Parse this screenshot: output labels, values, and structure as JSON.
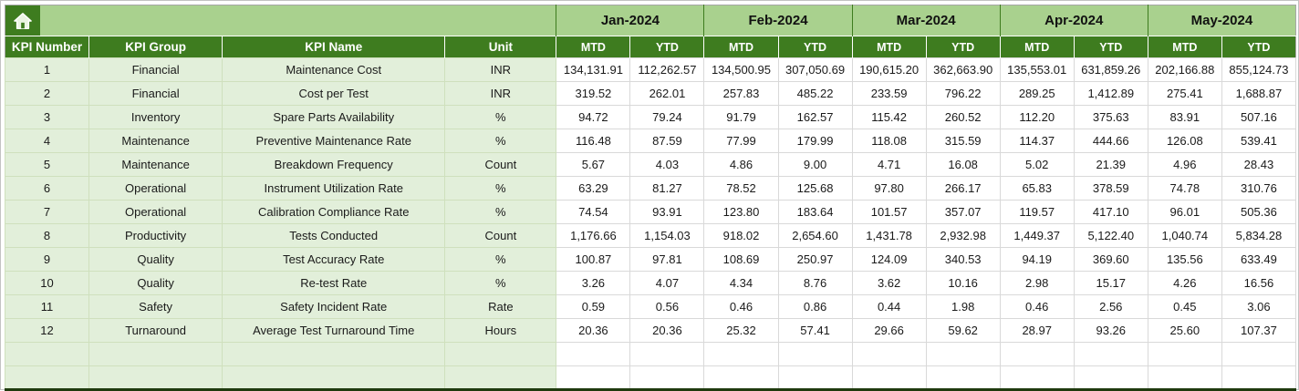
{
  "sheet": {
    "home_button": {
      "icon": "home-icon"
    },
    "months": [
      "Jan-2024",
      "Feb-2024",
      "Mar-2024",
      "Apr-2024",
      "May-2024"
    ],
    "sub_headers": [
      "MTD",
      "YTD"
    ],
    "columns": [
      "KPI Number",
      "KPI Group",
      "KPI Name",
      "Unit"
    ],
    "rows": [
      {
        "number": "1",
        "group": "Financial",
        "name": "Maintenance Cost",
        "unit": "INR",
        "values": [
          "134,131.91",
          "112,262.57",
          "134,500.95",
          "307,050.69",
          "190,615.20",
          "362,663.90",
          "135,553.01",
          "631,859.26",
          "202,166.88",
          "855,124.73"
        ]
      },
      {
        "number": "2",
        "group": "Financial",
        "name": "Cost per Test",
        "unit": "INR",
        "values": [
          "319.52",
          "262.01",
          "257.83",
          "485.22",
          "233.59",
          "796.22",
          "289.25",
          "1,412.89",
          "275.41",
          "1,688.87"
        ]
      },
      {
        "number": "3",
        "group": "Inventory",
        "name": "Spare Parts Availability",
        "unit": "%",
        "values": [
          "94.72",
          "79.24",
          "91.79",
          "162.57",
          "115.42",
          "260.52",
          "112.20",
          "375.63",
          "83.91",
          "507.16"
        ]
      },
      {
        "number": "4",
        "group": "Maintenance",
        "name": "Preventive Maintenance Rate",
        "unit": "%",
        "values": [
          "116.48",
          "87.59",
          "77.99",
          "179.99",
          "118.08",
          "315.59",
          "114.37",
          "444.66",
          "126.08",
          "539.41"
        ]
      },
      {
        "number": "5",
        "group": "Maintenance",
        "name": "Breakdown Frequency",
        "unit": "Count",
        "values": [
          "5.67",
          "4.03",
          "4.86",
          "9.00",
          "4.71",
          "16.08",
          "5.02",
          "21.39",
          "4.96",
          "28.43"
        ]
      },
      {
        "number": "6",
        "group": "Operational",
        "name": "Instrument Utilization Rate",
        "unit": "%",
        "values": [
          "63.29",
          "81.27",
          "78.52",
          "125.68",
          "97.80",
          "266.17",
          "65.83",
          "378.59",
          "74.78",
          "310.76"
        ]
      },
      {
        "number": "7",
        "group": "Operational",
        "name": "Calibration Compliance Rate",
        "unit": "%",
        "values": [
          "74.54",
          "93.91",
          "123.80",
          "183.64",
          "101.57",
          "357.07",
          "119.57",
          "417.10",
          "96.01",
          "505.36"
        ]
      },
      {
        "number": "8",
        "group": "Productivity",
        "name": "Tests Conducted",
        "unit": "Count",
        "values": [
          "1,176.66",
          "1,154.03",
          "918.02",
          "2,654.60",
          "1,431.78",
          "2,932.98",
          "1,449.37",
          "5,122.40",
          "1,040.74",
          "5,834.28"
        ]
      },
      {
        "number": "9",
        "group": "Quality",
        "name": "Test Accuracy Rate",
        "unit": "%",
        "values": [
          "100.87",
          "97.81",
          "108.69",
          "250.97",
          "124.09",
          "340.53",
          "94.19",
          "369.60",
          "135.56",
          "633.49"
        ]
      },
      {
        "number": "10",
        "group": "Quality",
        "name": "Re-test Rate",
        "unit": "%",
        "values": [
          "3.26",
          "4.07",
          "4.34",
          "8.76",
          "3.62",
          "10.16",
          "2.98",
          "15.17",
          "4.26",
          "16.56"
        ]
      },
      {
        "number": "11",
        "group": "Safety",
        "name": "Safety Incident Rate",
        "unit": "Rate",
        "values": [
          "0.59",
          "0.56",
          "0.46",
          "0.86",
          "0.44",
          "1.98",
          "0.46",
          "2.56",
          "0.45",
          "3.06"
        ]
      },
      {
        "number": "12",
        "group": "Turnaround",
        "name": "Average Test Turnaround Time",
        "unit": "Hours",
        "values": [
          "20.36",
          "20.36",
          "25.32",
          "57.41",
          "29.66",
          "59.62",
          "28.97",
          "93.26",
          "25.60",
          "107.37"
        ]
      }
    ],
    "empty_row_count": 2
  },
  "colors": {
    "header_green": "#3e7c1f",
    "band_green": "#a9d18e",
    "label_green": "#e2efda"
  }
}
